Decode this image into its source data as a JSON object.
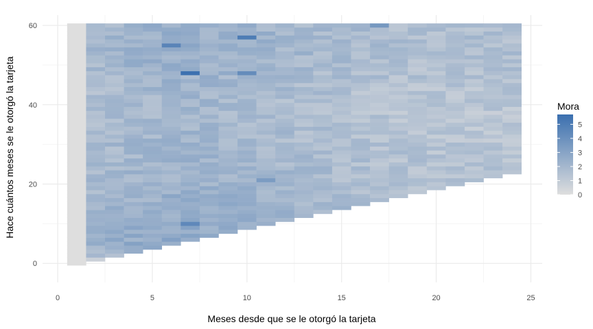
{
  "chart_data": {
    "type": "heatmap",
    "title": "",
    "xlabel": "Meses desde que se le otorgó la tarjeta",
    "ylabel": "Hace cuántos meses se le otorgó la tarjeta",
    "xlim": [
      -0.8,
      25.6
    ],
    "ylim": [
      -4.8,
      62.6
    ],
    "x_ticks": [
      0,
      5,
      10,
      15,
      20,
      25
    ],
    "y_ticks": [
      0,
      20,
      40,
      60
    ],
    "x_tick_labels": [
      "0",
      "5",
      "10",
      "15",
      "20",
      "25"
    ],
    "y_tick_labels": [
      "0",
      "20",
      "40",
      "60"
    ],
    "grid": true,
    "legend_position": "right",
    "value_range": [
      0,
      5.7
    ],
    "color_low": "#dedede",
    "color_high": "#3a6faf",
    "cell_rule": "one tile per (x, y) where x runs 1 to 24 and y runs from (x - 1) to 60; only tiles with x + y at least 22 are drawn from x = 21 onward",
    "row_means": [
      {
        "y": 0,
        "x_max": 1,
        "mean": 0.0
      },
      {
        "y": 5,
        "x_max": 6,
        "mean": 2.6
      },
      {
        "y": 10,
        "x_max": 11,
        "mean": 2.2
      },
      {
        "y": 20,
        "x_max": 21,
        "mean": 1.7
      },
      {
        "y": 30,
        "x_max": 24,
        "mean": 1.4
      },
      {
        "y": 40,
        "x_max": 24,
        "mean": 1.2
      },
      {
        "y": 48,
        "x_max": 24,
        "mean": 1.6
      },
      {
        "y": 55,
        "x_max": 24,
        "mean": 1.9
      },
      {
        "y": 60,
        "x_max": 24,
        "mean": 1.8
      }
    ],
    "column_profile": [
      {
        "x": 1,
        "mean": 0.0
      },
      {
        "x": 2,
        "mean": 1.6
      },
      {
        "x": 4,
        "mean": 2.0
      },
      {
        "x": 7,
        "mean": 2.3
      },
      {
        "x": 10,
        "mean": 2.0
      },
      {
        "x": 13,
        "mean": 1.6
      },
      {
        "x": 16,
        "mean": 1.3
      },
      {
        "x": 20,
        "mean": 1.0
      },
      {
        "x": 24,
        "mean": 1.0
      }
    ],
    "highlights": [
      {
        "x": 7,
        "y": 48,
        "value": 5.6
      },
      {
        "x": 10,
        "y": 57,
        "value": 5.0
      },
      {
        "x": 6,
        "y": 55,
        "value": 4.6
      },
      {
        "x": 7,
        "y": 10,
        "value": 4.4
      },
      {
        "x": 10,
        "y": 48,
        "value": 4.2
      },
      {
        "x": 11,
        "y": 21,
        "value": 3.4
      },
      {
        "x": 17,
        "y": 60,
        "value": 3.6
      }
    ]
  },
  "legend": {
    "title": "Mora",
    "ticks": [
      0,
      1,
      2,
      3,
      4,
      5
    ],
    "tick_labels": [
      "0",
      "1",
      "2",
      "3",
      "4",
      "5"
    ],
    "value_range": [
      0,
      5.7
    ]
  },
  "colors": {
    "panel_background": "#ffffff",
    "grid_major": "#ebebeb",
    "grid_minor": "#f5f5f5",
    "tile_low": "#dedede",
    "tile_high": "#3a6faf"
  }
}
